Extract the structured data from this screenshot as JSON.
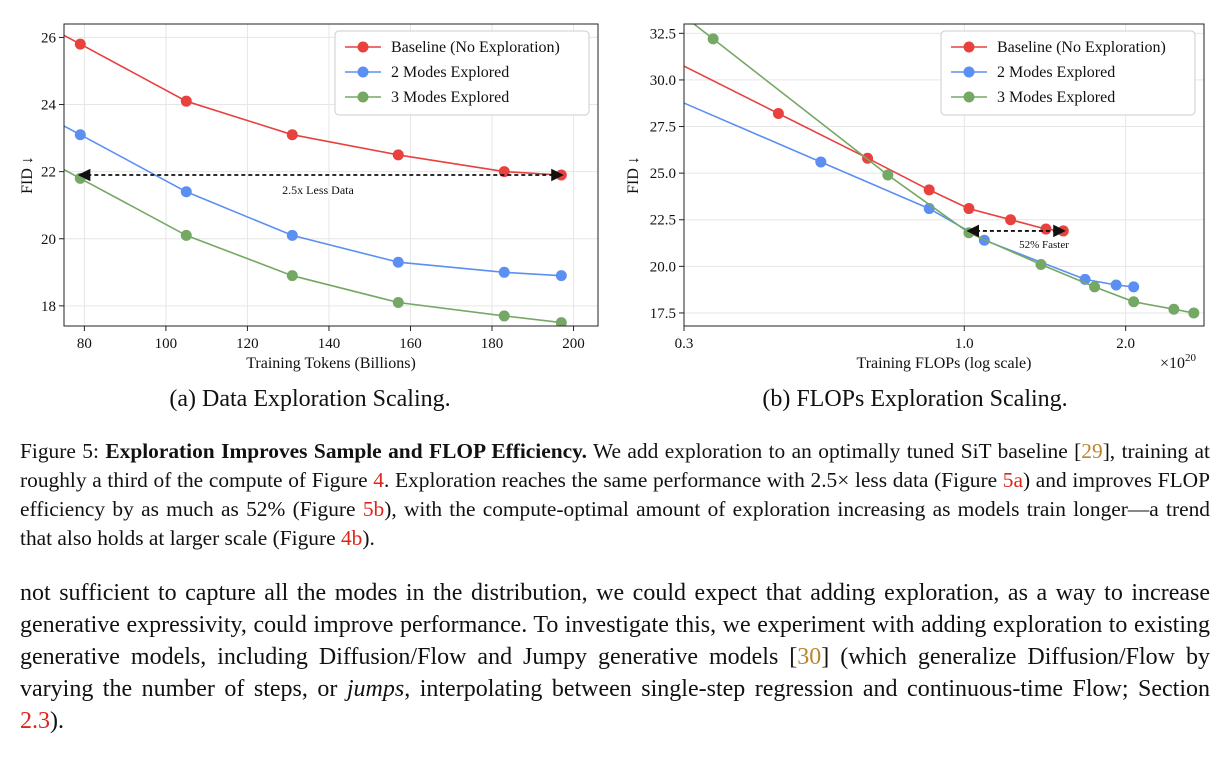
{
  "colors": {
    "baseline": "#e8413e",
    "two_modes": "#5b8ff2",
    "three_modes": "#76a865",
    "reference_link": "#b8862b",
    "cross_reference": "#e0251b"
  },
  "chart_data": [
    {
      "type": "line",
      "xlabel": "Training Tokens (Billions)",
      "ylabel": "FID ↓",
      "xlim": [
        75,
        206
      ],
      "ylim": [
        17.4,
        26.4
      ],
      "x_ticks": [
        "80",
        "100",
        "120",
        "140",
        "160",
        "180",
        "200"
      ],
      "y_ticks": [
        "18",
        "20",
        "22",
        "24",
        "26"
      ],
      "grid": true,
      "legend_position": "top-right",
      "series": [
        {
          "name": "Baseline (No Exploration)",
          "color": "#e8413e",
          "x": [
            79,
            105,
            131,
            157,
            183,
            197
          ],
          "y": [
            25.8,
            24.1,
            23.1,
            22.5,
            22.0,
            21.9
          ]
        },
        {
          "name": "2 Modes Explored",
          "color": "#5b8ff2",
          "x": [
            79,
            105,
            131,
            157,
            183,
            197
          ],
          "y": [
            23.1,
            21.4,
            20.1,
            19.3,
            19.0,
            18.9
          ]
        },
        {
          "name": "3 Modes Explored",
          "color": "#76a865",
          "x": [
            79,
            105,
            131,
            157,
            183,
            197
          ],
          "y": [
            21.8,
            20.1,
            18.9,
            18.1,
            17.7,
            17.5
          ]
        }
      ],
      "annotation": {
        "text": "2.5x Less Data",
        "x_from": 79,
        "x_to": 197,
        "y": 21.9
      }
    },
    {
      "type": "line",
      "xlabel": "Training FLOPs (log scale)",
      "ylabel": "FID ↓",
      "x_scale": "log",
      "xlim": [
        0.3,
        2.8
      ],
      "ylim": [
        16.8,
        33
      ],
      "x_ticks": [
        "0.3",
        "1.0",
        "2.0"
      ],
      "x_tick_values": [
        0.3,
        1.0,
        2.0
      ],
      "x_multiplier": "×10",
      "x_multiplier_exp": "20",
      "y_ticks": [
        "17.5",
        "20.0",
        "22.5",
        "25.0",
        "27.5",
        "30.0",
        "32.5"
      ],
      "grid": true,
      "legend_position": "top-right",
      "series": [
        {
          "name": "Baseline (No Exploration)",
          "color": "#e8413e",
          "x": [
            0.45,
            0.66,
            0.86,
            1.02,
            1.22,
            1.42,
            1.53
          ],
          "y": [
            28.2,
            25.8,
            24.1,
            23.1,
            22.5,
            22.0,
            21.9
          ]
        },
        {
          "name": "2 Modes Explored",
          "color": "#5b8ff2",
          "x": [
            0.54,
            0.86,
            1.09,
            1.68,
            1.92,
            2.07
          ],
          "y": [
            25.6,
            23.1,
            21.4,
            19.3,
            19.0,
            18.9
          ]
        },
        {
          "name": "3 Modes Explored",
          "color": "#76a865",
          "x": [
            0.34,
            0.72,
            1.02,
            1.39,
            1.75,
            2.07,
            2.46,
            2.68
          ],
          "y": [
            32.2,
            24.9,
            21.8,
            20.1,
            18.9,
            18.1,
            17.7,
            17.5
          ]
        }
      ],
      "annotation": {
        "text": "52% Faster",
        "x_from": 1.02,
        "x_to": 1.53,
        "y": 21.9
      }
    }
  ],
  "subcaptions": {
    "a": "(a) Data Exploration Scaling.",
    "b": "(b) FLOPs Exploration Scaling."
  },
  "caption": {
    "label": "Figure 5:",
    "bold_title": "Exploration Improves Sample and FLOP Efficiency.",
    "part1": "We add exploration to an optimally tuned SiT baseline [",
    "ref1": "29",
    "part2": "], training at roughly a third of the compute of Figure ",
    "xref1": "4",
    "part3": ". Exploration reaches the same performance with 2.5× less data (Figure ",
    "xref2": "5a",
    "part4": ") and improves FLOP efficiency by as much as 52% (Figure ",
    "xref3": "5b",
    "part5": "), with the compute-optimal amount of exploration increasing as models train longer—a trend that also holds at larger scale (Figure ",
    "xref4": "4b",
    "part6": ")."
  },
  "body": {
    "part1": "not sufficient to capture all the modes in the distribution, we could expect that adding exploration, as a way to increase generative expressivity, could improve performance. To investigate this, we experiment with adding exploration to existing generative models, including Diffusion/Flow and Jumpy generative models [",
    "ref1": "30",
    "part2": "] (which generalize Diffusion/Flow by varying the number of steps, or ",
    "italic": "jumps",
    "part3": ", interpolating between single-step regression and continuous-time Flow; Section ",
    "xref1": "2.3",
    "part4": ")."
  }
}
